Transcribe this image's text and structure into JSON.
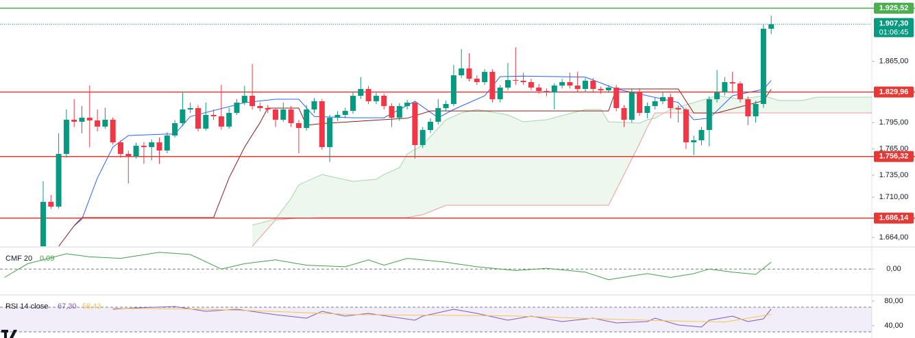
{
  "chart_data": [
    {
      "type": "candlestick",
      "up_color": "#089981",
      "down_color": "#f23645",
      "ylim": [
        1653.9,
        1934.9
      ],
      "yticks": [
        {
          "value": 1865,
          "label": "1.865,00"
        },
        {
          "value": 1795,
          "label": "1.795,00"
        },
        {
          "value": 1765,
          "label": "1.765,00"
        },
        {
          "value": 1735,
          "label": "1.735,00"
        },
        {
          "value": 1710,
          "label": "1.710,00"
        },
        {
          "value": 1664,
          "label": "1.664,00"
        }
      ],
      "levels": [
        {
          "value": 1925.52,
          "label": "1.925,52",
          "color": "#4caf50"
        },
        {
          "value": 1829.96,
          "label": "1.829,96",
          "color": "#e53935"
        },
        {
          "value": 1756.32,
          "label": "1.756,32",
          "color": "#e53935"
        },
        {
          "value": 1686.14,
          "label": "1.686,14",
          "color": "#e53935"
        }
      ],
      "last_price": {
        "value": 1907.3,
        "label": "1.907,30",
        "countdown": "01:06:45",
        "color": "#089981"
      },
      "candles": [
        [
          1653.9,
          1728.1,
          1650.0,
          1704.6
        ],
        [
          1704.6,
          1712.4,
          1696.8,
          1699.2
        ],
        [
          1699.2,
          1782.7,
          1697.0,
          1759.3
        ],
        [
          1759.3,
          1810.0,
          1755.0,
          1798.3
        ],
        [
          1798.3,
          1821.7,
          1790.0,
          1796.0
        ],
        [
          1796.0,
          1813.9,
          1782.7,
          1800.6
        ],
        [
          1800.6,
          1837.3,
          1767.0,
          1797.5
        ],
        [
          1797.5,
          1810.0,
          1785.0,
          1790.5
        ],
        [
          1790.5,
          1812.0,
          1788.0,
          1798.3
        ],
        [
          1798.3,
          1801.0,
          1770.0,
          1772.5
        ],
        [
          1772.5,
          1775.0,
          1755.0,
          1759.3
        ],
        [
          1759.3,
          1763.0,
          1725.7,
          1756.9
        ],
        [
          1756.9,
          1772.0,
          1754.0,
          1768.6
        ],
        [
          1768.6,
          1773.0,
          1748.0,
          1767.1
        ],
        [
          1767.1,
          1776.0,
          1752.0,
          1772.5
        ],
        [
          1772.5,
          1778.0,
          1748.0,
          1763.2
        ],
        [
          1763.2,
          1784.0,
          1760.0,
          1780.3
        ],
        [
          1780.3,
          1798.0,
          1778.0,
          1794.4
        ],
        [
          1794.4,
          1830.0,
          1791.0,
          1810.0
        ],
        [
          1810.0,
          1818.0,
          1806.0,
          1811.6
        ],
        [
          1811.6,
          1815.0,
          1785.0,
          1788.1
        ],
        [
          1788.1,
          1818.0,
          1786.0,
          1803.8
        ],
        [
          1803.8,
          1810.0,
          1798.0,
          1802.2
        ],
        [
          1802.2,
          1838.0,
          1787.0,
          1790.5
        ],
        [
          1790.5,
          1812.0,
          1788.0,
          1806.1
        ],
        [
          1806.1,
          1822.0,
          1804.0,
          1817.8
        ],
        [
          1817.8,
          1837.0,
          1815.0,
          1825.6
        ],
        [
          1825.6,
          1862.0,
          1810.0,
          1813.9
        ],
        [
          1813.9,
          1818.0,
          1808.0,
          1811.6
        ],
        [
          1811.6,
          1815.0,
          1806.0,
          1810.0
        ],
        [
          1810.0,
          1812.0,
          1790.0,
          1798.3
        ],
        [
          1798.3,
          1818.0,
          1796.0,
          1810.0
        ],
        [
          1810.0,
          1814.0,
          1790.0,
          1794.4
        ],
        [
          1794.4,
          1798.0,
          1760.0,
          1788.9
        ],
        [
          1788.9,
          1815.0,
          1786.0,
          1810.0
        ],
        [
          1810.0,
          1823.0,
          1806.0,
          1819.4
        ],
        [
          1819.4,
          1822.0,
          1764.0,
          1767.1
        ],
        [
          1767.1,
          1804.0,
          1750.0,
          1800.6
        ],
        [
          1800.6,
          1808.0,
          1797.0,
          1803.8
        ],
        [
          1803.8,
          1812.0,
          1800.0,
          1808.4
        ],
        [
          1808.4,
          1830.0,
          1805.0,
          1825.6
        ],
        [
          1825.6,
          1847.0,
          1822.0,
          1833.4
        ],
        [
          1833.4,
          1837.0,
          1816.0,
          1819.4
        ],
        [
          1819.4,
          1829.0,
          1816.0,
          1825.6
        ],
        [
          1825.6,
          1828.0,
          1810.0,
          1813.9
        ],
        [
          1813.9,
          1817.0,
          1790.0,
          1800.6
        ],
        [
          1800.6,
          1817.0,
          1797.0,
          1813.9
        ],
        [
          1813.9,
          1821.0,
          1810.0,
          1817.8
        ],
        [
          1817.8,
          1820.0,
          1754.0,
          1769.4
        ],
        [
          1769.4,
          1790.0,
          1766.0,
          1786.6
        ],
        [
          1786.6,
          1800.0,
          1783.0,
          1796.0
        ],
        [
          1796.0,
          1822.0,
          1793.0,
          1811.6
        ],
        [
          1811.6,
          1820.0,
          1808.0,
          1816.3
        ],
        [
          1816.3,
          1861.0,
          1814.0,
          1849.0
        ],
        [
          1849.0,
          1879.0,
          1846.0,
          1856.8
        ],
        [
          1856.8,
          1874.0,
          1842.0,
          1845.1
        ],
        [
          1845.1,
          1849.0,
          1838.0,
          1841.2
        ],
        [
          1841.2,
          1856.0,
          1838.0,
          1852.9
        ],
        [
          1852.9,
          1856.0,
          1818.0,
          1821.7
        ],
        [
          1821.7,
          1838.0,
          1818.0,
          1835.0
        ],
        [
          1835.0,
          1863.0,
          1832.0,
          1843.6
        ],
        [
          1843.6,
          1881.0,
          1838.0,
          1842.8
        ],
        [
          1842.8,
          1852.0,
          1838.0,
          1841.2
        ],
        [
          1841.2,
          1845.0,
          1832.0,
          1835.0
        ],
        [
          1835.0,
          1839.0,
          1828.0,
          1831.1
        ],
        [
          1831.1,
          1834.0,
          1825.0,
          1829.5
        ],
        [
          1829.5,
          1840.0,
          1810.0,
          1837.3
        ],
        [
          1837.3,
          1845.0,
          1834.0,
          1841.2
        ],
        [
          1841.2,
          1852.0,
          1834.0,
          1837.3
        ],
        [
          1837.3,
          1853.0,
          1830.0,
          1833.4
        ],
        [
          1833.4,
          1846.0,
          1830.0,
          1842.8
        ],
        [
          1842.8,
          1846.0,
          1829.0,
          1833.4
        ],
        [
          1833.4,
          1836.0,
          1828.0,
          1831.9
        ],
        [
          1831.9,
          1838.0,
          1829.0,
          1835.0
        ],
        [
          1835.0,
          1838.0,
          1808.0,
          1811.6
        ],
        [
          1811.6,
          1815.0,
          1790.0,
          1798.3
        ],
        [
          1798.3,
          1834.0,
          1795.0,
          1829.5
        ],
        [
          1829.5,
          1833.0,
          1803.0,
          1806.1
        ],
        [
          1806.1,
          1818.0,
          1800.0,
          1813.9
        ],
        [
          1813.9,
          1824.0,
          1810.0,
          1819.4
        ],
        [
          1819.4,
          1830.0,
          1816.0,
          1824.1
        ],
        [
          1824.1,
          1828.0,
          1800.0,
          1811.6
        ],
        [
          1811.6,
          1815.0,
          1795.0,
          1810.0
        ],
        [
          1810.0,
          1812.0,
          1765.0,
          1772.5
        ],
        [
          1772.5,
          1780.0,
          1758.0,
          1774.9
        ],
        [
          1774.9,
          1790.0,
          1769.0,
          1786.6
        ],
        [
          1786.6,
          1825.0,
          1768.0,
          1821.7
        ],
        [
          1821.7,
          1855.0,
          1818.0,
          1829.5
        ],
        [
          1829.5,
          1847.0,
          1826.0,
          1841.2
        ],
        [
          1841.2,
          1853.0,
          1829.0,
          1839.7
        ],
        [
          1839.7,
          1842.0,
          1818.0,
          1821.7
        ],
        [
          1821.7,
          1825.0,
          1792.0,
          1802.2
        ],
        [
          1802.2,
          1820.0,
          1795.0,
          1816.3
        ],
        [
          1816.3,
          1907.0,
          1812.0,
          1902.1
        ],
        [
          1902.1,
          1917.0,
          1896.0,
          1907.3
        ]
      ],
      "series": [
        {
          "color": "#2962ff",
          "x": [
            4,
            5,
            7,
            9,
            11,
            16,
            17,
            19,
            26,
            30,
            33,
            35,
            40,
            44,
            48,
            51,
            53,
            57,
            59,
            62,
            70,
            74,
            82,
            84,
            86,
            89,
            93,
            94
          ],
          "values": [
            1677.3,
            1684.9,
            1731.9,
            1767.1,
            1780.3,
            1782,
            1782,
            1802,
            1817.8,
            1821.7,
            1821.7,
            1802,
            1800.6,
            1800.6,
            1819.4,
            1800.6,
            1810,
            1825.6,
            1847.5,
            1848,
            1847,
            1833.4,
            1818,
            1798.3,
            1800,
            1825.6,
            1833,
            1843
          ]
        },
        {
          "color": "#8b1a1a",
          "x": [
            2,
            4,
            5,
            22,
            24,
            26,
            28,
            29,
            33,
            34,
            36,
            47,
            50,
            73,
            74,
            82,
            84,
            87,
            93,
            94
          ],
          "values": [
            1653.9,
            1677.3,
            1686.7,
            1686.7,
            1732,
            1767,
            1795,
            1811.6,
            1811.6,
            1792,
            1794,
            1800,
            1808.4,
            1808.4,
            1833.4,
            1833.4,
            1806,
            1806,
            1820,
            1833
          ]
        }
      ],
      "cloud": {
        "fill": "#4caf50",
        "color_a": "#a5d6a7",
        "color_b": "#ef9a9a",
        "x": [
          27,
          30,
          32,
          33,
          36,
          40,
          43,
          44,
          46,
          47,
          49,
          52,
          54,
          56,
          60,
          62,
          65,
          70,
          72,
          73,
          77,
          78,
          79,
          81,
          84,
          87,
          90,
          93,
          95,
          98,
          100,
          107
        ],
        "span_a": [
          1678,
          1685.1,
          1708.5,
          1724.1,
          1735.8,
          1728.0,
          1730.4,
          1735.8,
          1743.7,
          1759.3,
          1769.4,
          1798.3,
          1806.1,
          1810.0,
          1803.8,
          1796.0,
          1798.3,
          1810.0,
          1810.0,
          1796.0,
          1794.4,
          1798.3,
          1800,
          1810.0,
          1817.8,
          1825.6,
          1821.7,
          1825.6,
          1820.2,
          1820.2,
          1824.1,
          1824.1
        ],
        "span_b": [
          1653.9,
          1684,
          1685.5,
          1686,
          1686.7,
          1686.7,
          1686.7,
          1686.7,
          1686.7,
          1686.7,
          1690,
          1700.7,
          1700.7,
          1700.7,
          1700.7,
          1700.7,
          1700.7,
          1700.7,
          1700.7,
          1700.7,
          1771,
          1790,
          1806.1,
          1806.1,
          1806.1,
          1806.1,
          1806.1,
          1806.1,
          1806.1,
          1806.1,
          1806.1,
          1806.1
        ]
      }
    },
    {
      "type": "line",
      "title": "CMF 20",
      "last_label": "0,09",
      "color": "#43a047",
      "x": [
        -5,
        -2,
        3,
        6,
        10,
        15,
        19,
        23,
        26,
        30,
        34,
        39,
        42,
        44,
        47,
        52,
        56,
        61,
        65,
        70,
        73,
        76,
        78,
        81,
        84,
        86,
        89,
        92,
        94
      ],
      "values": [
        -0.11,
        0.07,
        0.2,
        0.16,
        0.14,
        0.22,
        0.19,
        0,
        0.07,
        0.12,
        0.05,
        0.03,
        0.12,
        0.05,
        0.14,
        0.09,
        0.03,
        -0.02,
        0.01,
        -0.04,
        -0.14,
        -0.09,
        -0.06,
        -0.11,
        -0.06,
        0,
        -0.04,
        -0.07,
        0.09
      ],
      "ylim": [
        -0.33,
        0.28
      ],
      "yticks": [
        {
          "value": 0,
          "label": "0,00"
        }
      ],
      "grid": true
    },
    {
      "type": "line",
      "title": "RSI 14 close",
      "band": [
        30,
        70
      ],
      "band_color": "#7e57c2",
      "series": [
        {
          "color": "#7e57c2",
          "last_label": "67,30",
          "x": [
            9,
            12,
            17,
            21,
            25,
            30,
            34,
            36,
            39,
            42,
            48,
            49,
            53,
            56,
            60,
            63,
            67,
            71,
            74,
            78,
            79,
            82,
            85,
            86,
            89,
            91,
            93,
            94
          ],
          "values": [
            66.7,
            68.9,
            71.1,
            63.3,
            66.7,
            57.8,
            52.2,
            63.3,
            55.6,
            60,
            48.9,
            55.6,
            66.7,
            60,
            48.9,
            55.6,
            46.7,
            52.2,
            44.4,
            46.7,
            52.2,
            41.1,
            37.8,
            48.9,
            55.6,
            46.7,
            51.1,
            67.3
          ]
        },
        {
          "color": "#f7c548",
          "last_label": "58,43",
          "x": [
            9,
            20,
            30,
            40,
            50,
            60,
            70,
            80,
            88,
            94
          ],
          "values": [
            68,
            67,
            63,
            58,
            57,
            56,
            52,
            48,
            46,
            58.43
          ]
        }
      ],
      "ylim": [
        20,
        88.9
      ],
      "yticks": [
        {
          "value": 80,
          "label": "80,00"
        },
        {
          "value": 40,
          "label": "40,00"
        }
      ],
      "grid": false
    }
  ]
}
